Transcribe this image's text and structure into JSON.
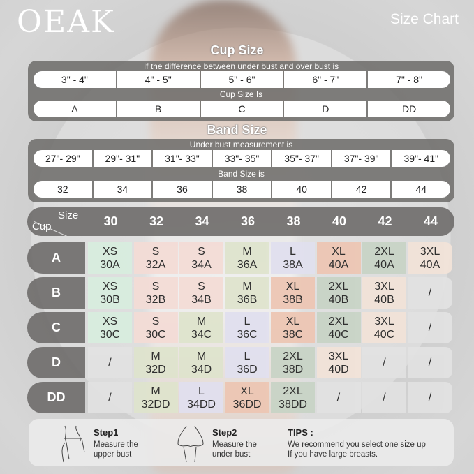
{
  "brand": "OEAK",
  "title": "Size Chart",
  "cup_section": {
    "title": "Cup Size",
    "caption1": "If the  difference between under bust and over bust is",
    "ranges": [
      "3\" -  4\"",
      "4\" -  5\"",
      "5\" -  6\"",
      "6\" -  7\"",
      "7\" -  8\""
    ],
    "caption2": "Cup Size Is",
    "cups": [
      "A",
      "B",
      "C",
      "D",
      "DD"
    ]
  },
  "band_section": {
    "title": "Band Size",
    "caption1": "Under bust measurement is",
    "ranges": [
      "27\"- 29\"",
      "29\"- 31\"",
      "31\"- 33\"",
      "33\"- 35\"",
      "35\"- 37\"",
      "37\"- 39\"",
      "39\"- 41\""
    ],
    "caption2": "Band Size is",
    "bands": [
      "32",
      "34",
      "36",
      "38",
      "40",
      "42",
      "44"
    ]
  },
  "table": {
    "corner_size": "Size",
    "corner_cup": "Cup",
    "columns": [
      "30",
      "32",
      "34",
      "36",
      "38",
      "40",
      "42",
      "44"
    ],
    "rows": [
      {
        "cup": "A",
        "cells": [
          [
            "XS",
            "30A"
          ],
          [
            "S",
            "32A"
          ],
          [
            "S",
            "34A"
          ],
          [
            "M",
            "36A"
          ],
          [
            "L",
            "38A"
          ],
          [
            "XL",
            "40A"
          ],
          [
            "2XL",
            "40A"
          ],
          [
            "3XL",
            "40A"
          ]
        ]
      },
      {
        "cup": "B",
        "cells": [
          [
            "XS",
            "30B"
          ],
          [
            "S",
            "32B"
          ],
          [
            "S",
            "34B"
          ],
          [
            "M",
            "36B"
          ],
          [
            "XL",
            "38B"
          ],
          [
            "2XL",
            "40B"
          ],
          [
            "3XL",
            "40B"
          ],
          [
            "/",
            ""
          ]
        ]
      },
      {
        "cup": "C",
        "cells": [
          [
            "XS",
            "30C"
          ],
          [
            "S",
            "30C"
          ],
          [
            "M",
            "34C"
          ],
          [
            "L",
            "36C"
          ],
          [
            "XL",
            "38C"
          ],
          [
            "2XL",
            "40C"
          ],
          [
            "3XL",
            "40C"
          ],
          [
            "/",
            ""
          ]
        ]
      },
      {
        "cup": "D",
        "cells": [
          [
            "/",
            ""
          ],
          [
            "M",
            "32D"
          ],
          [
            "M",
            "34D"
          ],
          [
            "L",
            "36D"
          ],
          [
            "2XL",
            "38D"
          ],
          [
            "3XL",
            "40D"
          ],
          [
            "/",
            ""
          ],
          [
            "/",
            ""
          ]
        ]
      },
      {
        "cup": "DD",
        "cells": [
          [
            "/",
            ""
          ],
          [
            "M",
            "32DD"
          ],
          [
            "L",
            "34DD"
          ],
          [
            "XL",
            "36DD"
          ],
          [
            "2XL",
            "38DD"
          ],
          [
            "/",
            ""
          ],
          [
            "/",
            ""
          ],
          [
            "/",
            ""
          ]
        ]
      }
    ]
  },
  "size_colors": {
    "XS": "#d8eedf",
    "S": "#f4dcd6",
    "M": "#dfe4cd",
    "L": "#e1e0ef",
    "XL": "#edc6b3",
    "2XL": "#c8d4c6",
    "3XL": "#f2e3d8",
    "/": "#e2e2e2"
  },
  "steps": [
    {
      "title": "Step1",
      "desc1": "Measure the",
      "desc2": "upper bust"
    },
    {
      "title": "Step2",
      "desc1": "Measure the",
      "desc2": "under bust"
    }
  ],
  "tips": {
    "title": "TIPS :",
    "line1": "We recommend you select one size up",
    "line2": "If you have large breasts."
  }
}
